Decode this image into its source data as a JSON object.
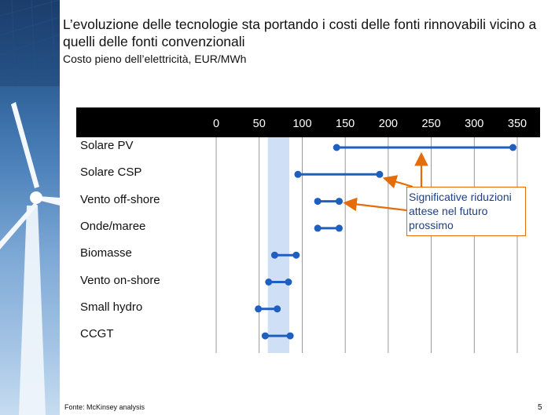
{
  "title": "L’evoluzione delle tecnologie sta portando i costi delle fonti rinnovabili vicino a quelli delle fonti convenzionali",
  "chart_data": {
    "type": "range-dumbbell",
    "title": "L’evoluzione delle tecnologie sta portando i costi delle fonti rinnovabili vicino a quelli delle fonti convenzionali",
    "subtitle": "Costo pieno dell’elettricità, EUR/MWh",
    "xlabel": "EUR/MWh",
    "xlim": [
      0,
      350
    ],
    "x_ticks": [
      "0",
      "50",
      "100",
      "150",
      "200",
      "250",
      "300",
      "350"
    ],
    "highlight_band": [
      60,
      85
    ],
    "categories": [
      "Solare PV",
      "Solare CSP",
      "Vento off-shore",
      "Onde/maree",
      "Biomasse",
      "Vento on-shore",
      "Small hydro",
      "CCGT"
    ],
    "ranges": [
      {
        "name": "Solare PV",
        "low": 140,
        "high": 345
      },
      {
        "name": "Solare CSP",
        "low": 95,
        "high": 190
      },
      {
        "name": "Vento off-shore",
        "low": 118,
        "high": 143
      },
      {
        "name": "Onde/maree",
        "low": 118,
        "high": 143
      },
      {
        "name": "Biomasse",
        "low": 68,
        "high": 93
      },
      {
        "name": "Vento on-shore",
        "low": 61,
        "high": 84
      },
      {
        "name": "Small hydro",
        "low": 49,
        "high": 71
      },
      {
        "name": "CCGT",
        "low": 57,
        "high": 86
      }
    ],
    "annotation": "Significative riduzioni attese nel futuro prossimo",
    "annotation_targets": [
      "Solare PV",
      "Solare CSP",
      "Vento off-shore"
    ],
    "colors": {
      "series": "#1f5fbf",
      "band": "#cfe0f6",
      "gridline": "#7f7f7f",
      "callout_border": "#e46c0a",
      "arrow": "#e46c0a",
      "callout_text": "#1f3f86",
      "header": "#000000"
    }
  },
  "footer": {
    "source": "Fonte: McKinsey analysis",
    "page": "5"
  }
}
